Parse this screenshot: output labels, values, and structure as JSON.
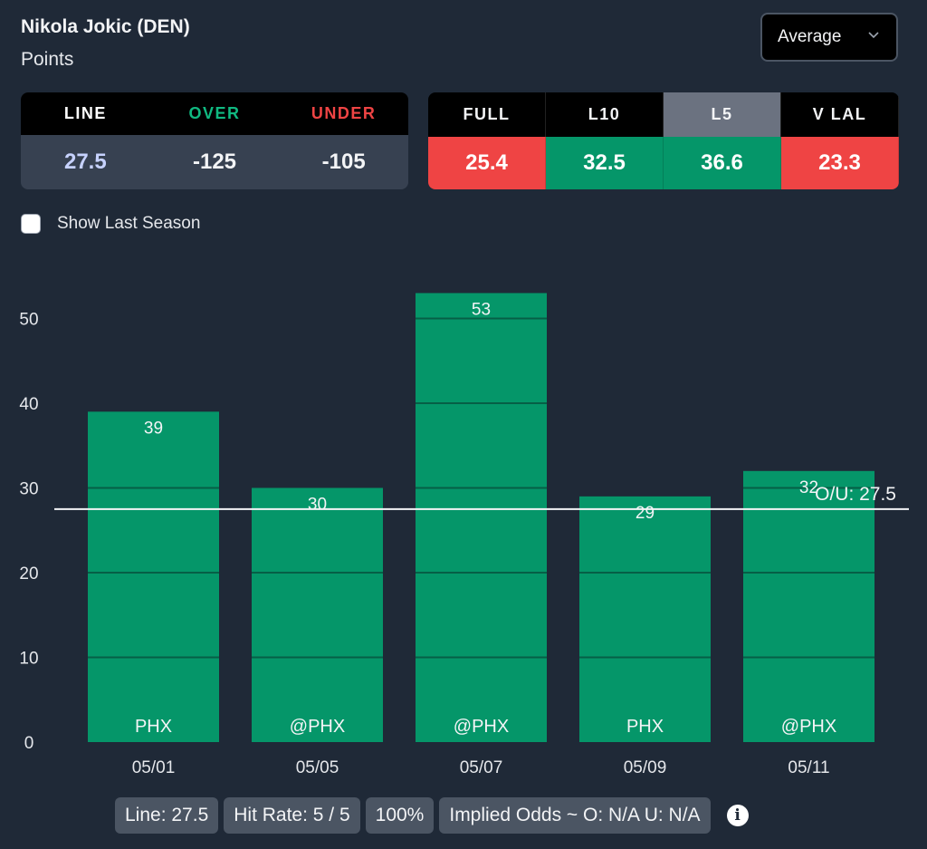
{
  "header": {
    "player": "Nikola Jokic (DEN)",
    "stat": "Points",
    "dropdown_value": "Average"
  },
  "odds": {
    "headers": [
      {
        "label": "LINE",
        "color": "#ffffff"
      },
      {
        "label": "OVER",
        "color": "#10b981"
      },
      {
        "label": "UNDER",
        "color": "#ef4444"
      }
    ],
    "values": [
      {
        "value": "27.5",
        "color": "#c7d2fe"
      },
      {
        "value": "-125",
        "color": "#f3f4f6"
      },
      {
        "value": "-105",
        "color": "#f3f4f6"
      }
    ]
  },
  "splits": {
    "selected": "L5",
    "items": [
      {
        "label": "FULL",
        "value": "25.4",
        "status": "under"
      },
      {
        "label": "L10",
        "value": "32.5",
        "status": "over"
      },
      {
        "label": "L5",
        "value": "36.6",
        "status": "over"
      },
      {
        "label": "V LAL",
        "value": "23.3",
        "status": "under"
      }
    ],
    "colors": {
      "over": "#059669",
      "under": "#ef4444",
      "selected_header": "#6b7280"
    }
  },
  "show_last_season": {
    "label": "Show Last Season",
    "checked": false
  },
  "chart_data": {
    "type": "bar",
    "title": "",
    "xlabel": "",
    "ylabel": "",
    "categories": [
      "05/01",
      "05/05",
      "05/07",
      "05/09",
      "05/11"
    ],
    "opponents": [
      "PHX",
      "@PHX",
      "@PHX",
      "PHX",
      "@PHX"
    ],
    "values": [
      39,
      30,
      53,
      29,
      32
    ],
    "yticks": [
      0,
      10,
      20,
      30,
      40,
      50
    ],
    "ylim": [
      0,
      55
    ],
    "line": {
      "value": 27.5,
      "label": "O/U: 27.5"
    },
    "bar_color": "#059669",
    "grid": true
  },
  "footer": {
    "line": "Line: 27.5",
    "hit_rate": "Hit Rate: 5 / 5",
    "percent": "100%",
    "implied_odds": "Implied Odds ~ O: N/A U: N/A",
    "info_icon": "i"
  }
}
